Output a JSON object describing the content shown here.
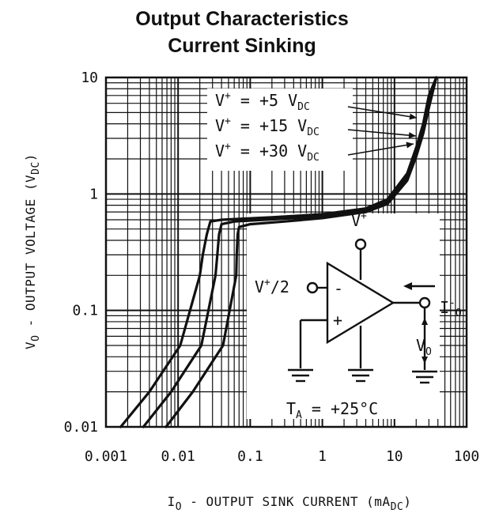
{
  "title_line1": "Output Characteristics",
  "title_line2": "Current Sinking",
  "chart_data": {
    "type": "line",
    "title": "Output Characteristics Current Sinking",
    "xscale": "log",
    "yscale": "log",
    "xlim": [
      0.001,
      100
    ],
    "ylim": [
      0.01,
      10
    ],
    "grid": true,
    "xticks": [
      "0.001",
      "0.01",
      "0.1",
      "1",
      "10",
      "100"
    ],
    "yticks": [
      "10",
      "1",
      "0.1",
      "0.01"
    ],
    "xlabel": {
      "main": "I",
      "sub": "O",
      "text": " - OUTPUT SINK CURRENT (mA",
      "unit_sub": "DC",
      "close": ")"
    },
    "ylabel": {
      "main": "V",
      "sub": "O",
      "text": " - OUTPUT VOLTAGE (V",
      "unit_sub": "DC",
      "close": ")"
    },
    "series": [
      {
        "name": "V+ = +5 VDC",
        "x": [
          0.0016,
          0.004,
          0.0107,
          0.02,
          0.022,
          0.025,
          0.028,
          0.04,
          0.2,
          1,
          4,
          8,
          15,
          20,
          25,
          30,
          38
        ],
        "y": [
          0.01,
          0.02,
          0.05,
          0.2,
          0.3,
          0.45,
          0.58,
          0.6,
          0.63,
          0.67,
          0.75,
          0.9,
          1.5,
          2.5,
          4,
          7,
          10
        ]
      },
      {
        "name": "V+ = +15 VDC",
        "x": [
          0.0033,
          0.008,
          0.021,
          0.033,
          0.035,
          0.037,
          0.04,
          0.06,
          0.25,
          1,
          4,
          8,
          15,
          20,
          25,
          30,
          38
        ],
        "y": [
          0.01,
          0.02,
          0.05,
          0.2,
          0.3,
          0.45,
          0.55,
          0.58,
          0.61,
          0.64,
          0.72,
          0.86,
          1.4,
          2.3,
          3.6,
          6,
          10
        ]
      },
      {
        "name": "V+ = +30 VDC",
        "x": [
          0.0068,
          0.016,
          0.042,
          0.064,
          0.065,
          0.067,
          0.07,
          0.1,
          0.3,
          1,
          4,
          8,
          15,
          20,
          25,
          30,
          38
        ],
        "y": [
          0.01,
          0.02,
          0.05,
          0.2,
          0.3,
          0.45,
          0.52,
          0.55,
          0.58,
          0.62,
          0.7,
          0.82,
          1.3,
          2.1,
          3.3,
          5.5,
          10
        ]
      }
    ],
    "annotations": {
      "vplus5": {
        "v": "V",
        "sup": "+",
        "eq": " = +5 V",
        "sub": "DC"
      },
      "vplus15": {
        "v": "V",
        "sup": "+",
        "eq": " = +15 V",
        "sub": "DC"
      },
      "vplus30": {
        "v": "V",
        "sup": "+",
        "eq": " = +30 V",
        "sub": "DC"
      },
      "temp": {
        "t": "T",
        "sub": "A",
        "eq": " = +25°C"
      }
    },
    "inset": {
      "vplus": {
        "v": "V",
        "sup": "+"
      },
      "vhalf": {
        "v": "V",
        "sup": "+",
        "rest": "/2"
      },
      "minus": "-",
      "plus": "+",
      "io": {
        "i": "I",
        "sup": "-",
        "sub": "O"
      },
      "vo": {
        "v": "V",
        "sub": "O"
      }
    }
  }
}
